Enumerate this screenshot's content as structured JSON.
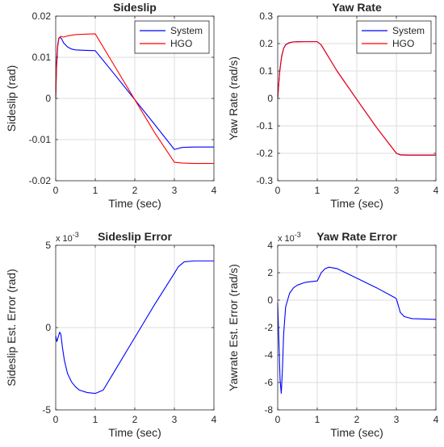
{
  "chart_data": [
    {
      "type": "line",
      "title": "Sideslip",
      "xlabel": "Time (sec)",
      "ylabel": "Sideslip (rad)",
      "xlim": [
        0,
        4
      ],
      "ylim": [
        -0.02,
        0.02
      ],
      "xticks": [
        0,
        1,
        2,
        3,
        4
      ],
      "yticks": [
        -0.02,
        -0.01,
        0,
        0.01,
        0.02
      ],
      "xtick_labels": [
        "0",
        "1",
        "2",
        "3",
        "4"
      ],
      "ytick_labels": [
        "-0.02",
        "-0.01",
        "0",
        "0.01",
        "0.02"
      ],
      "exponent_label": "",
      "grid": true,
      "legend": "top-right",
      "series": [
        {
          "name": "System",
          "color": "#0000ff",
          "x": [
            0,
            0.02,
            0.05,
            0.08,
            0.12,
            0.16,
            0.2,
            0.3,
            0.4,
            0.5,
            0.7,
            1.0,
            1.5,
            2.0,
            2.5,
            3.0,
            3.2,
            3.5,
            4.0
          ],
          "y": [
            0,
            0.0085,
            0.013,
            0.0147,
            0.0148,
            0.0143,
            0.0135,
            0.0125,
            0.012,
            0.0118,
            0.0117,
            0.0116,
            0.0057,
            -0.0003,
            -0.0063,
            -0.0124,
            -0.0119,
            -0.0118,
            -0.0118
          ]
        },
        {
          "name": "HGO",
          "color": "#ff0000",
          "x": [
            0,
            0.02,
            0.05,
            0.08,
            0.12,
            0.16,
            0.2,
            0.3,
            0.5,
            0.7,
            1.0,
            1.5,
            2.0,
            2.5,
            3.0,
            3.2,
            3.5,
            4.0
          ],
          "y": [
            0,
            0.007,
            0.0125,
            0.0145,
            0.0151,
            0.015,
            0.0149,
            0.0152,
            0.0155,
            0.0156,
            0.0157,
            0.0077,
            -0.0003,
            -0.0083,
            -0.0155,
            -0.0157,
            -0.0158,
            -0.0158
          ]
        }
      ]
    },
    {
      "type": "line",
      "title": "Yaw Rate",
      "xlabel": "Time (sec)",
      "ylabel": "Yaw Rate (rad/s)",
      "xlim": [
        0,
        4
      ],
      "ylim": [
        -0.3,
        0.3
      ],
      "xticks": [
        0,
        1,
        2,
        3,
        4
      ],
      "yticks": [
        -0.3,
        -0.2,
        -0.1,
        0,
        0.1,
        0.2,
        0.3
      ],
      "xtick_labels": [
        "0",
        "1",
        "2",
        "3",
        "4"
      ],
      "ytick_labels": [
        "-0.3",
        "-0.2",
        "-0.1",
        "0",
        "0.1",
        "0.2",
        "0.3"
      ],
      "exponent_label": "",
      "grid": true,
      "legend": "top-right",
      "series": [
        {
          "name": "System",
          "color": "#0000ff",
          "x": [
            0,
            0.05,
            0.1,
            0.15,
            0.2,
            0.3,
            0.4,
            0.5,
            0.7,
            1.0,
            1.1,
            1.5,
            2.0,
            2.5,
            3.0,
            3.1,
            3.3,
            3.6,
            4.0
          ],
          "y": [
            0,
            0.1,
            0.155,
            0.183,
            0.196,
            0.204,
            0.206,
            0.207,
            0.207,
            0.207,
            0.195,
            0.1,
            -0.004,
            -0.106,
            -0.2,
            -0.206,
            -0.207,
            -0.207,
            -0.207
          ]
        },
        {
          "name": "HGO",
          "color": "#ff0000",
          "x": [
            0,
            0.05,
            0.1,
            0.15,
            0.2,
            0.3,
            0.4,
            0.5,
            0.7,
            1.0,
            1.1,
            1.5,
            2.0,
            2.5,
            3.0,
            3.1,
            3.3,
            3.6,
            4.0
          ],
          "y": [
            0,
            0.095,
            0.152,
            0.182,
            0.195,
            0.203,
            0.206,
            0.206,
            0.207,
            0.207,
            0.195,
            0.1,
            -0.004,
            -0.106,
            -0.2,
            -0.205,
            -0.206,
            -0.206,
            -0.206
          ]
        }
      ]
    },
    {
      "type": "line",
      "title": "Sideslip Error",
      "xlabel": "Time (sec)",
      "ylabel": "Sideslip Est. Error (rad)",
      "xlim": [
        0,
        4
      ],
      "ylim": [
        -5,
        5
      ],
      "xticks": [
        0,
        1,
        2,
        3,
        4
      ],
      "yticks": [
        -5,
        0,
        5
      ],
      "xtick_labels": [
        "0",
        "1",
        "2",
        "3",
        "4"
      ],
      "ytick_labels": [
        "-5",
        "0",
        "5"
      ],
      "exponent_label": "x 10",
      "exponent_power": "-3",
      "grid": true,
      "legend": "none",
      "series": [
        {
          "name": "",
          "color": "#0000ff",
          "x": [
            0,
            0.03,
            0.06,
            0.1,
            0.13,
            0.17,
            0.22,
            0.3,
            0.4,
            0.5,
            0.6,
            0.8,
            1.0,
            1.2,
            1.5,
            2.0,
            2.5,
            3.0,
            3.1,
            3.25,
            3.5,
            4.0
          ],
          "y": [
            -0.5,
            -0.85,
            -0.6,
            -0.28,
            -0.4,
            -1.2,
            -2.0,
            -2.8,
            -3.3,
            -3.6,
            -3.8,
            -3.95,
            -4.0,
            -3.8,
            -2.6,
            -0.6,
            1.4,
            3.3,
            3.7,
            4.0,
            4.05,
            4.05
          ]
        }
      ]
    },
    {
      "type": "line",
      "title": "Yaw Rate Error",
      "xlabel": "Time (sec)",
      "ylabel": "Yawrate Est. Error (rad/s)",
      "xlim": [
        0,
        4
      ],
      "ylim": [
        -8,
        4
      ],
      "xticks": [
        0,
        1,
        2,
        3,
        4
      ],
      "yticks": [
        -8,
        -6,
        -4,
        -2,
        0,
        2,
        4
      ],
      "xtick_labels": [
        "0",
        "1",
        "2",
        "3",
        "4"
      ],
      "ytick_labels": [
        "-8",
        "-6",
        "-4",
        "-2",
        "0",
        "2",
        "4"
      ],
      "exponent_label": "x 10",
      "exponent_power": "-3",
      "grid": true,
      "legend": "none",
      "series": [
        {
          "name": "",
          "color": "#0000ff",
          "x": [
            0,
            0.03,
            0.06,
            0.09,
            0.12,
            0.15,
            0.2,
            0.3,
            0.4,
            0.5,
            0.7,
            1.0,
            1.1,
            1.2,
            1.3,
            1.5,
            2.0,
            2.5,
            2.95,
            3.0,
            3.05,
            3.1,
            3.2,
            3.4,
            4.0
          ],
          "y": [
            -0.2,
            -3.0,
            -5.8,
            -6.8,
            -5.0,
            -2.5,
            -0.5,
            0.5,
            0.9,
            1.1,
            1.3,
            1.4,
            2.0,
            2.3,
            2.4,
            2.3,
            1.6,
            0.9,
            0.2,
            0.1,
            -0.4,
            -0.9,
            -1.2,
            -1.35,
            -1.4
          ]
        }
      ]
    }
  ]
}
